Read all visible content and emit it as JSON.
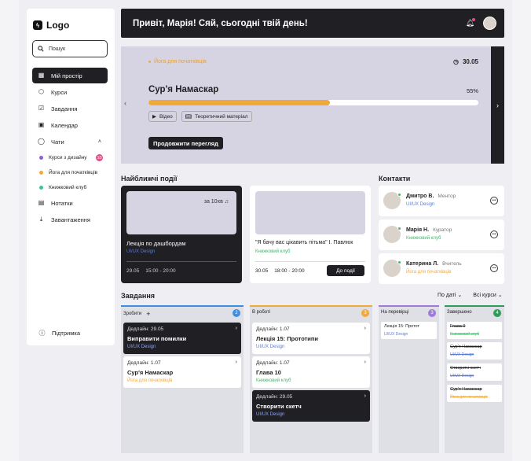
{
  "sidebar": {
    "logo": "Logo",
    "search_placeholder": "Пошук",
    "nav": [
      {
        "label": "Мій простір",
        "icon": "grid-icon"
      },
      {
        "label": "Курси",
        "icon": "cube-icon"
      },
      {
        "label": "Завдання",
        "icon": "check-square-icon"
      },
      {
        "label": "Календар",
        "icon": "calendar-icon"
      },
      {
        "label": "Чати",
        "icon": "chat-icon"
      }
    ],
    "chats": [
      {
        "label": "Курси з дизайну",
        "color": "#8a63d2",
        "badge": "10"
      },
      {
        "label": "Йога для початківців",
        "color": "#f2a93b"
      },
      {
        "label": "Книжковий клуб",
        "color": "#3fc29a"
      }
    ],
    "nav2": [
      {
        "label": "Нотатки"
      },
      {
        "label": "Завантаження"
      }
    ],
    "support": "Підтримка"
  },
  "header": {
    "greeting": "Привіт, Марія! Сяй, сьогодні твій день!"
  },
  "hero": {
    "tag": "Йога для початківців",
    "time": "30.05",
    "title": "Сур'я Намаскар",
    "progress_label": "55%",
    "progress": 0.55,
    "chips": [
      "Відео",
      "Теоретичний матеріал"
    ],
    "button": "Продовжити перегляд"
  },
  "events": {
    "title": "Найближчі події",
    "items": [
      {
        "in_label": "за 10хв",
        "title": "Лекція по дашбордам",
        "tag": "UI/UX Design",
        "date": "29.05",
        "time": "15:00 - 20:00"
      },
      {
        "title": "\"Я бачу вас цікавить пітьма\" І. Павлюк",
        "tag": "Книжковий клуб",
        "date": "30.05",
        "time": "18:00 - 20:00",
        "button": "До події"
      }
    ]
  },
  "contacts": {
    "title": "Контакти",
    "items": [
      {
        "name": "Дмитро В.",
        "role": "Ментор",
        "tag": "UI/UX Design",
        "tag_color": "#5b7bd8"
      },
      {
        "name": "Марія Н.",
        "role": "Куратор",
        "tag": "Книжковий клуб",
        "tag_color": "#47b56e"
      },
      {
        "name": "Катерина Л.",
        "role": "Вчитель",
        "tag": "Йога для початківців",
        "tag_color": "#f2a93b"
      }
    ]
  },
  "tasks": {
    "title": "Завдання",
    "filter_date": "По даті",
    "filter_courses": "Всі курси",
    "columns": [
      {
        "name": "Зробити",
        "count": "2",
        "color": "#3d8ee0"
      },
      {
        "name": "В роботі",
        "count": "3",
        "color": "#f2a93b"
      },
      {
        "name": "На перевірці",
        "count": "3",
        "color": "#9f7ad8"
      },
      {
        "name": "Завершено",
        "count": "4",
        "color": "#2f9c5a"
      }
    ],
    "todo": [
      {
        "deadline": "Дедлайн: 29.05",
        "title": "Виправити помилки",
        "tag": "UI/UX Design"
      },
      {
        "deadline": "Дедлайн: 1.07",
        "title": "Сур'я Намаскар",
        "tag": "Йога для початківців"
      }
    ],
    "inprogress": [
      {
        "deadline": "Дедлайн: 1.07",
        "title": "Лекція 15: Прототипи",
        "tag": "UI/UX Design"
      },
      {
        "deadline": "Дедлайн: 1.07",
        "title": "Глава 10",
        "tag": "Книжковий клуб"
      },
      {
        "deadline": "Дедлайн: 29.05",
        "title": "Створити скетч",
        "tag": "UI/UX Design"
      }
    ],
    "review": [
      {
        "title": "Лекція 15: Протот",
        "tag": "UI/UX Design"
      }
    ],
    "done": [
      {
        "title": "Глава 9",
        "tag": "Книжковий клуб"
      },
      {
        "title": "Сур'я Намаскар",
        "tag": "UI/UX Design"
      },
      {
        "title": "Створити скетч",
        "tag": "UI/UX Design"
      },
      {
        "title": "Сур'я Намаскар",
        "tag": "Йога для початківців"
      }
    ]
  }
}
